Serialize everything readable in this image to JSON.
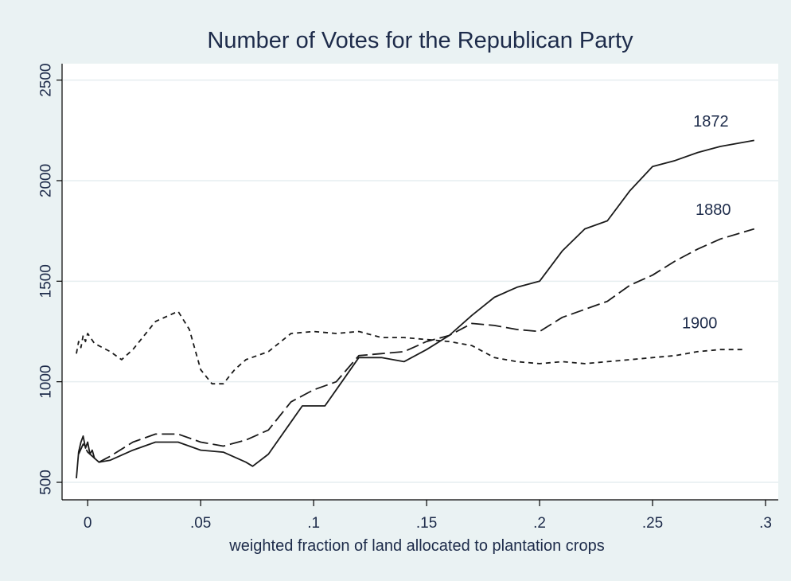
{
  "chart_data": {
    "type": "line",
    "title": "Number of Votes for the Republican Party",
    "xlabel": "weighted fraction of land allocated to plantation crops",
    "ylabel": "",
    "xlim": [
      -0.005,
      0.3
    ],
    "ylim": [
      500,
      2550
    ],
    "x_ticks": [
      {
        "value": 0,
        "label": "0"
      },
      {
        "value": 0.05,
        "label": ".05"
      },
      {
        "value": 0.1,
        "label": ".1"
      },
      {
        "value": 0.15,
        "label": ".15"
      },
      {
        "value": 0.2,
        "label": ".2"
      },
      {
        "value": 0.25,
        "label": ".25"
      },
      {
        "value": 0.3,
        "label": ".3"
      }
    ],
    "y_ticks": [
      {
        "value": 500,
        "label": "500"
      },
      {
        "value": 1000,
        "label": "1000"
      },
      {
        "value": 1500,
        "label": "1500"
      },
      {
        "value": 2000,
        "label": "2000"
      },
      {
        "value": 2500,
        "label": "2500"
      }
    ],
    "grid": "horizontal",
    "legend": "none",
    "series": [
      {
        "name": "1872",
        "style": "solid",
        "points": [
          [
            -0.005,
            520
          ],
          [
            -0.004,
            650
          ],
          [
            -0.003,
            700
          ],
          [
            -0.002,
            730
          ],
          [
            -0.001,
            670
          ],
          [
            0,
            700
          ],
          [
            0.001,
            640
          ],
          [
            0.002,
            660
          ],
          [
            0.003,
            620
          ],
          [
            0.005,
            600
          ],
          [
            0.01,
            610
          ],
          [
            0.02,
            660
          ],
          [
            0.03,
            700
          ],
          [
            0.04,
            700
          ],
          [
            0.05,
            660
          ],
          [
            0.06,
            650
          ],
          [
            0.07,
            600
          ],
          [
            0.073,
            580
          ],
          [
            0.08,
            640
          ],
          [
            0.09,
            800
          ],
          [
            0.095,
            880
          ],
          [
            0.105,
            880
          ],
          [
            0.11,
            960
          ],
          [
            0.12,
            1120
          ],
          [
            0.13,
            1120
          ],
          [
            0.14,
            1100
          ],
          [
            0.15,
            1160
          ],
          [
            0.16,
            1230
          ],
          [
            0.17,
            1330
          ],
          [
            0.18,
            1420
          ],
          [
            0.19,
            1470
          ],
          [
            0.2,
            1500
          ],
          [
            0.21,
            1650
          ],
          [
            0.22,
            1760
          ],
          [
            0.23,
            1800
          ],
          [
            0.24,
            1950
          ],
          [
            0.25,
            2070
          ],
          [
            0.26,
            2100
          ],
          [
            0.27,
            2140
          ],
          [
            0.28,
            2170
          ],
          [
            0.295,
            2200
          ]
        ]
      },
      {
        "name": "1880",
        "style": "dash",
        "points": [
          [
            -0.004,
            640
          ],
          [
            -0.002,
            690
          ],
          [
            0,
            650
          ],
          [
            0.005,
            600
          ],
          [
            0.01,
            630
          ],
          [
            0.02,
            700
          ],
          [
            0.03,
            740
          ],
          [
            0.04,
            740
          ],
          [
            0.05,
            700
          ],
          [
            0.06,
            680
          ],
          [
            0.07,
            710
          ],
          [
            0.08,
            760
          ],
          [
            0.09,
            900
          ],
          [
            0.1,
            960
          ],
          [
            0.11,
            1000
          ],
          [
            0.12,
            1130
          ],
          [
            0.13,
            1140
          ],
          [
            0.14,
            1150
          ],
          [
            0.15,
            1200
          ],
          [
            0.16,
            1230
          ],
          [
            0.17,
            1290
          ],
          [
            0.18,
            1280
          ],
          [
            0.19,
            1260
          ],
          [
            0.2,
            1250
          ],
          [
            0.21,
            1320
          ],
          [
            0.22,
            1360
          ],
          [
            0.23,
            1400
          ],
          [
            0.24,
            1480
          ],
          [
            0.25,
            1530
          ],
          [
            0.26,
            1600
          ],
          [
            0.27,
            1660
          ],
          [
            0.28,
            1710
          ],
          [
            0.295,
            1760
          ]
        ]
      },
      {
        "name": "1900",
        "style": "short-dash",
        "points": [
          [
            -0.005,
            1140
          ],
          [
            -0.004,
            1200
          ],
          [
            -0.003,
            1170
          ],
          [
            -0.002,
            1230
          ],
          [
            -0.001,
            1200
          ],
          [
            0,
            1240
          ],
          [
            0.003,
            1190
          ],
          [
            0.01,
            1150
          ],
          [
            0.015,
            1110
          ],
          [
            0.02,
            1160
          ],
          [
            0.03,
            1300
          ],
          [
            0.04,
            1350
          ],
          [
            0.045,
            1260
          ],
          [
            0.05,
            1060
          ],
          [
            0.055,
            990
          ],
          [
            0.06,
            990
          ],
          [
            0.065,
            1060
          ],
          [
            0.07,
            1110
          ],
          [
            0.08,
            1150
          ],
          [
            0.09,
            1240
          ],
          [
            0.1,
            1250
          ],
          [
            0.11,
            1240
          ],
          [
            0.12,
            1250
          ],
          [
            0.13,
            1220
          ],
          [
            0.14,
            1220
          ],
          [
            0.15,
            1210
          ],
          [
            0.16,
            1200
          ],
          [
            0.17,
            1180
          ],
          [
            0.18,
            1120
          ],
          [
            0.19,
            1100
          ],
          [
            0.2,
            1090
          ],
          [
            0.21,
            1100
          ],
          [
            0.22,
            1090
          ],
          [
            0.23,
            1100
          ],
          [
            0.24,
            1110
          ],
          [
            0.25,
            1120
          ],
          [
            0.26,
            1130
          ],
          [
            0.27,
            1150
          ],
          [
            0.28,
            1160
          ],
          [
            0.29,
            1160
          ]
        ]
      }
    ],
    "annotations": [
      {
        "text": "1872",
        "x": 0.268,
        "y": 2270
      },
      {
        "text": "1880",
        "x": 0.269,
        "y": 1830
      },
      {
        "text": "1900",
        "x": 0.263,
        "y": 1265
      }
    ]
  }
}
